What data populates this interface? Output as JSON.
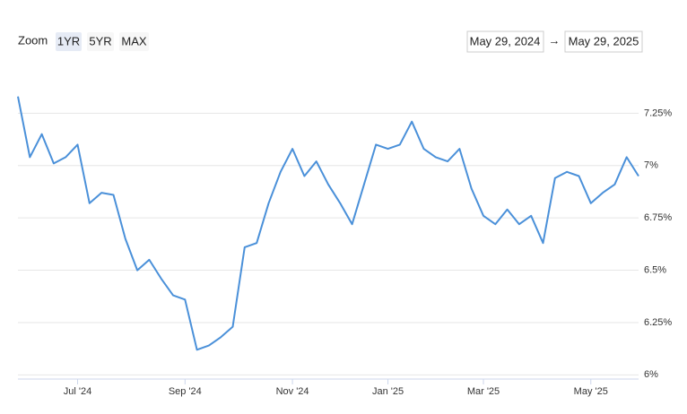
{
  "chart_data": {
    "type": "line",
    "zoom_label": "Zoom",
    "range_buttons": [
      "1YR",
      "5YR",
      "MAX"
    ],
    "selected_range_index": 0,
    "range_start": "May 29, 2024",
    "range_separator": "→",
    "range_end": "May 29, 2025",
    "categories": [
      null,
      null,
      null,
      null,
      null,
      "Jul '24",
      null,
      null,
      null,
      null,
      null,
      null,
      null,
      null,
      "Sep '24",
      null,
      null,
      null,
      null,
      null,
      null,
      null,
      null,
      "Nov '24",
      null,
      null,
      null,
      null,
      null,
      null,
      null,
      "Jan '25",
      null,
      null,
      null,
      null,
      null,
      null,
      null,
      "Mar '25",
      null,
      null,
      null,
      null,
      null,
      null,
      null,
      null,
      "May '25",
      null,
      null,
      null,
      null
    ],
    "series": [
      {
        "color": "#4a90d9",
        "values": [
          7.33,
          7.04,
          7.15,
          7.01,
          7.04,
          7.1,
          6.82,
          6.87,
          6.86,
          6.65,
          6.5,
          6.55,
          6.46,
          6.38,
          6.36,
          6.12,
          6.14,
          6.18,
          6.23,
          6.61,
          6.63,
          6.82,
          6.97,
          7.08,
          6.95,
          7.02,
          6.91,
          6.82,
          6.72,
          6.91,
          7.1,
          7.08,
          7.1,
          7.21,
          7.08,
          7.04,
          7.02,
          7.08,
          6.89,
          6.76,
          6.72,
          6.79,
          6.72,
          6.76,
          6.63,
          6.94,
          6.97,
          6.95,
          6.82,
          6.87,
          6.91,
          7.04,
          6.95
        ]
      }
    ],
    "ylim": [
      5.98,
      7.5
    ],
    "yticks": [
      {
        "value": 6,
        "label": "6%"
      },
      {
        "value": 6.25,
        "label": "6.25%"
      },
      {
        "value": 6.5,
        "label": "6.5%"
      },
      {
        "value": 6.75,
        "label": "6.75%"
      },
      {
        "value": 7,
        "label": "7%"
      },
      {
        "value": 7.25,
        "label": "7.25%"
      }
    ],
    "grid": true
  }
}
